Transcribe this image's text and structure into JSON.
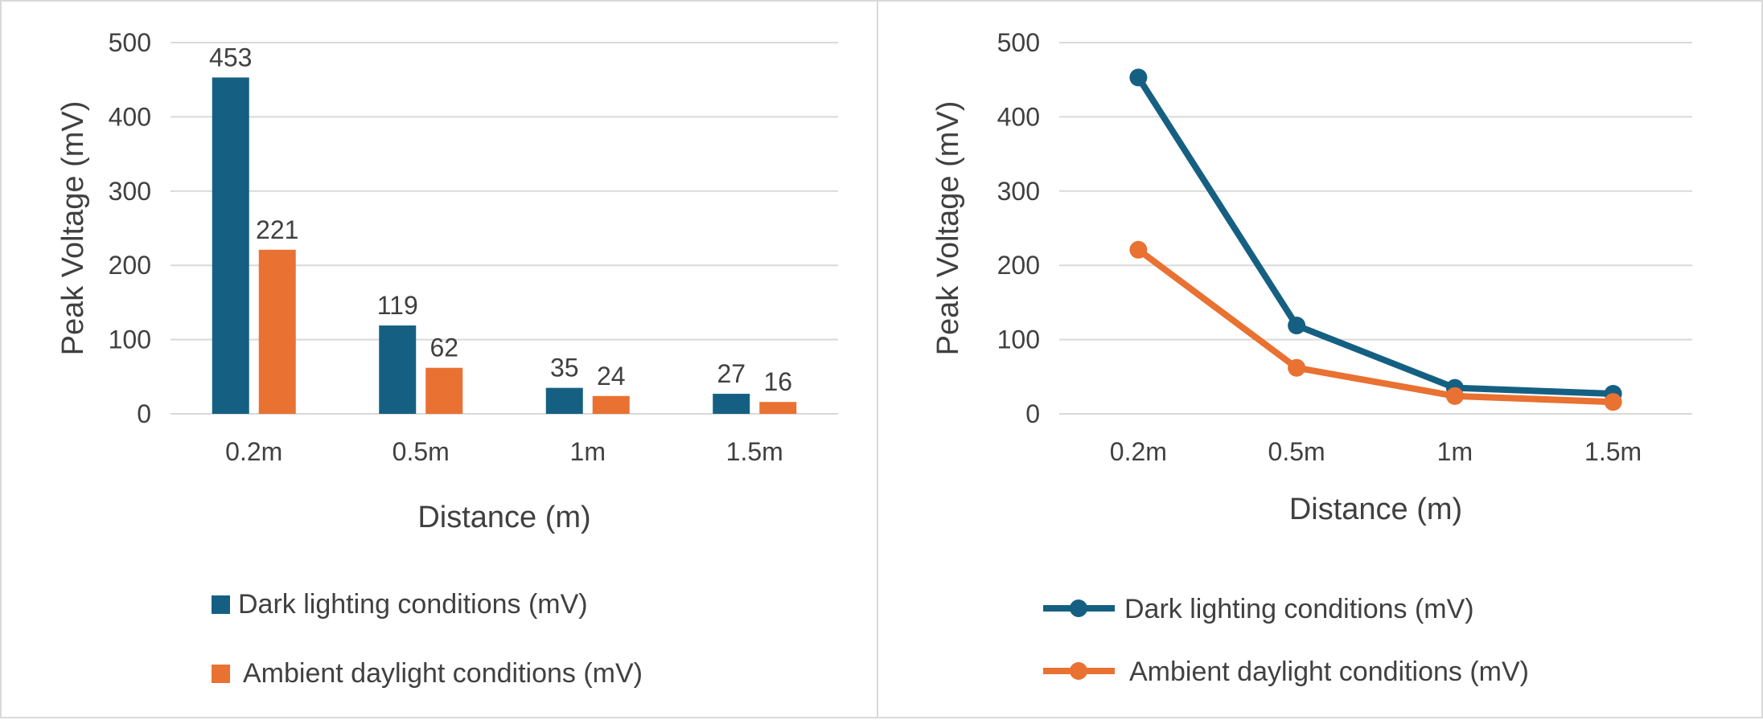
{
  "colors": {
    "dark": "#156082",
    "ambient": "#E97132",
    "grid": "#d9d9d9",
    "axis_text": "#595959"
  },
  "chart_data": [
    {
      "type": "bar",
      "categories": [
        "0.2m",
        "0.5m",
        "1m",
        "1.5m"
      ],
      "series": [
        {
          "name": "Dark lighting conditions (mV)",
          "values": [
            453,
            119,
            35,
            27
          ]
        },
        {
          "name": "Ambient daylight conditions (mV)",
          "values": [
            221,
            62,
            24,
            16
          ]
        }
      ],
      "xlabel": "Distance (m)",
      "ylabel": "Peak Voltage (mV)",
      "ylim": [
        0,
        500
      ],
      "yticks": [
        "0",
        "100",
        "200",
        "300",
        "400",
        "500"
      ],
      "data_labels": true,
      "grid": true,
      "legend": "bottom"
    },
    {
      "type": "line",
      "categories": [
        "0.2m",
        "0.5m",
        "1m",
        "1.5m"
      ],
      "series": [
        {
          "name": "Dark lighting conditions (mV)",
          "values": [
            453,
            119,
            35,
            27
          ]
        },
        {
          "name": "Ambient daylight conditions (mV)",
          "values": [
            221,
            62,
            24,
            16
          ]
        }
      ],
      "xlabel": "Distance (m)",
      "ylabel": "Peak Voltage (mV)",
      "ylim": [
        0,
        500
      ],
      "yticks": [
        "0",
        "100",
        "200",
        "300",
        "400",
        "500"
      ],
      "markers": true,
      "grid": true,
      "legend": "bottom"
    }
  ]
}
